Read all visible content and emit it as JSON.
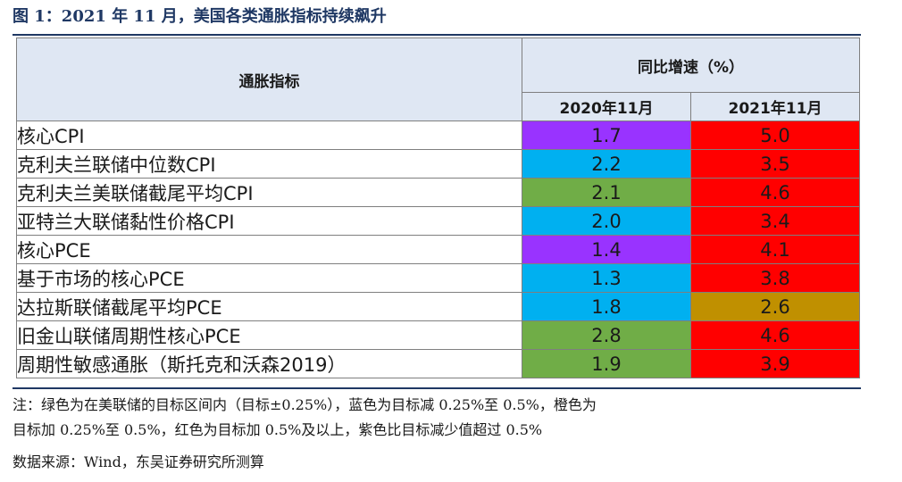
{
  "figure_title": "图 1：2021 年 11 月，美国各类通胀指标持续飙升",
  "table": {
    "header_indicator": "通胀指标",
    "header_group": "同比增速（%）",
    "header_cols": [
      "2020年11月",
      "2021年11月"
    ],
    "rows": [
      {
        "name": "核心CPI",
        "v2020": "1.7",
        "c2020": "purple",
        "v2021": "5.0",
        "c2021": "red"
      },
      {
        "name": "克利夫兰联储中位数CPI",
        "v2020": "2.2",
        "c2020": "blue",
        "v2021": "3.5",
        "c2021": "red"
      },
      {
        "name": "克利夫兰美联储截尾平均CPI",
        "v2020": "2.1",
        "c2020": "green",
        "v2021": "4.6",
        "c2021": "red"
      },
      {
        "name": "亚特兰大联储黏性价格CPI",
        "v2020": "2.0",
        "c2020": "blue",
        "v2021": "3.4",
        "c2021": "red"
      },
      {
        "name": "核心PCE",
        "v2020": "1.4",
        "c2020": "purple",
        "v2021": "4.1",
        "c2021": "red"
      },
      {
        "name": "基于市场的核心PCE",
        "v2020": "1.3",
        "c2020": "blue",
        "v2021": "3.8",
        "c2021": "red"
      },
      {
        "name": "达拉斯联储截尾平均PCE",
        "v2020": "1.8",
        "c2020": "blue",
        "v2021": "2.6",
        "c2021": "orange"
      },
      {
        "name": "旧金山联储周期性核心PCE",
        "v2020": "2.8",
        "c2020": "green",
        "v2021": "4.6",
        "c2021": "red"
      },
      {
        "name": "周期性敏感通胀（斯托克和沃森2019）",
        "v2020": "1.9",
        "c2020": "green",
        "v2021": "3.9",
        "c2021": "red"
      }
    ]
  },
  "colors": {
    "purple": "#9933ff",
    "blue": "#00b0f0",
    "green": "#70ad47",
    "red": "#ff0000",
    "orange": "#c09000",
    "header_bg": "#dfe7f3",
    "rule": "#1f3864"
  },
  "note_line1": "注：绿色为在美联储的目标区间内（目标±0.25%），蓝色为目标减 0.25%至 0.5%，橙色为",
  "note_line2": "目标加 0.25%至 0.5%，红色为目标加 0.5%及以上，紫色比目标减少值超过 0.5%",
  "source": "数据来源：Wind，东吴证券研究所测算"
}
